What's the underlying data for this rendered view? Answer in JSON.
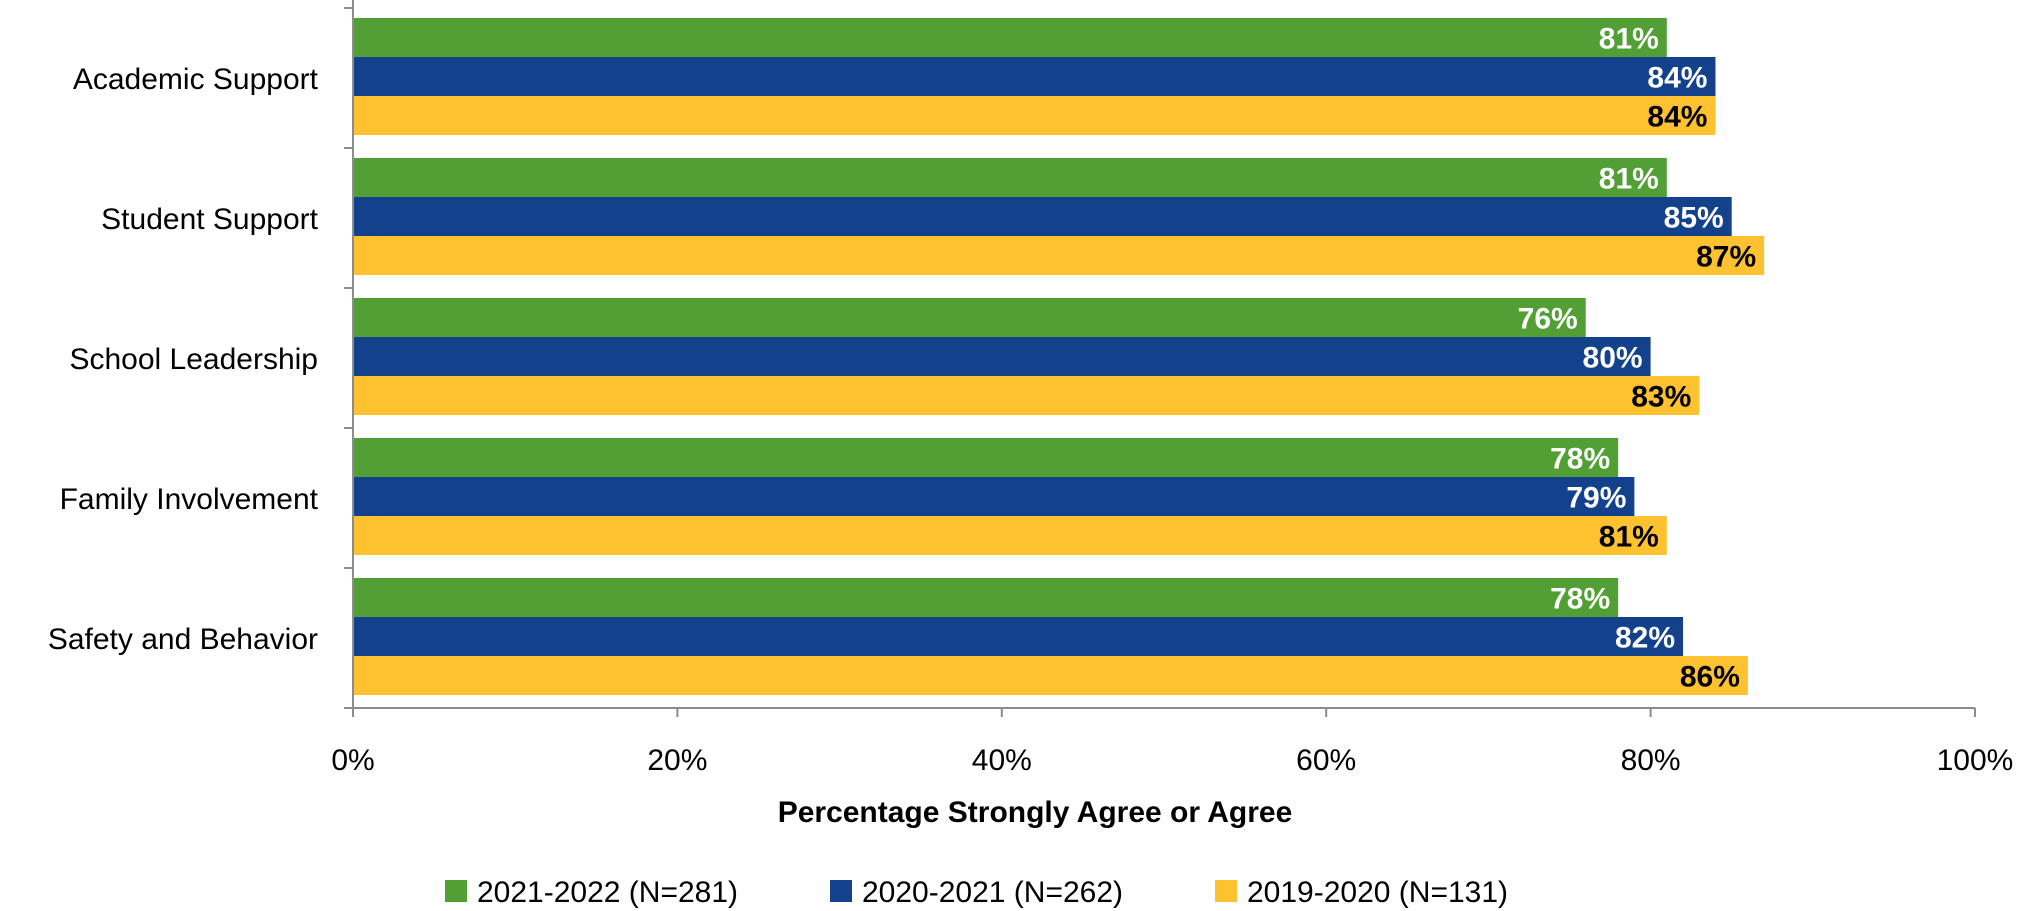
{
  "chart_data": {
    "type": "bar",
    "orientation": "horizontal",
    "title": "",
    "xlabel": "Percentage Strongly Agree or Agree",
    "ylabel": "",
    "xlim": [
      0,
      100
    ],
    "x_ticks": [
      "0%",
      "20%",
      "40%",
      "60%",
      "80%",
      "100%"
    ],
    "categories": [
      "Academic Support",
      "Student Support",
      "School Leadership",
      "Family Involvement",
      "Safety and Behavior"
    ],
    "series": [
      {
        "name": "2021-2022 (N=281)",
        "color": "#52A035",
        "label_color": "#ffffff",
        "values": [
          81,
          81,
          76,
          78,
          78
        ],
        "labels": [
          "81%",
          "81%",
          "76%",
          "78%",
          "78%"
        ]
      },
      {
        "name": "2020-2021 (N=262)",
        "color": "#14418B",
        "label_color": "#ffffff",
        "values": [
          84,
          85,
          80,
          79,
          82
        ],
        "labels": [
          "84%",
          "85%",
          "80%",
          "79%",
          "82%"
        ]
      },
      {
        "name": "2019-2020 (N=131)",
        "color": "#FEC231",
        "label_color": "#000000",
        "values": [
          84,
          87,
          83,
          81,
          86
        ],
        "labels": [
          "84%",
          "87%",
          "83%",
          "81%",
          "86%"
        ]
      }
    ],
    "grid": false,
    "legend_position": "bottom"
  }
}
